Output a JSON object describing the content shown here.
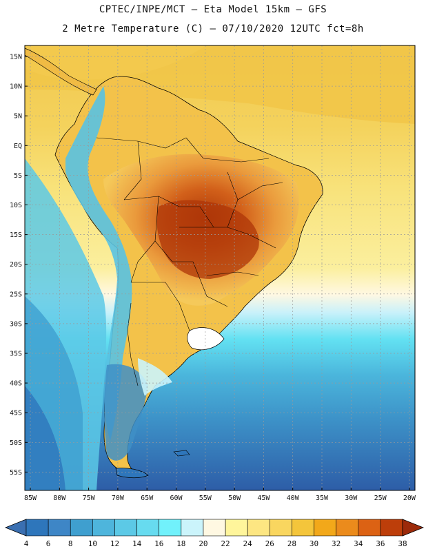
{
  "header": {
    "line1": "CPTEC/INPE/MCT —  Eta Model 15km — GFS",
    "line2": "2 Metre Temperature (C) — 07/10/2020 12UTC fct=8h"
  },
  "axes": {
    "lat_labels": [
      "15N",
      "10N",
      "5N",
      "EQ",
      "5S",
      "10S",
      "15S",
      "20S",
      "25S",
      "30S",
      "35S",
      "40S",
      "45S",
      "50S",
      "55S"
    ],
    "lon_labels": [
      "85W",
      "80W",
      "75W",
      "70W",
      "65W",
      "60W",
      "55W",
      "50W",
      "45W",
      "40W",
      "35W",
      "30W",
      "25W",
      "20W"
    ]
  },
  "colorbar": {
    "labels": [
      "4",
      "6",
      "8",
      "10",
      "12",
      "14",
      "16",
      "18",
      "20",
      "22",
      "24",
      "26",
      "28",
      "30",
      "32",
      "34",
      "36",
      "38"
    ],
    "colors": [
      "#3a6fb1",
      "#2e76bb",
      "#3e86c6",
      "#3f9fcf",
      "#4eb5dc",
      "#5cc9e6",
      "#67dbef",
      "#71f1fb",
      "#cbf4fb",
      "#fff8e2",
      "#fff59b",
      "#fde682",
      "#f9d65f",
      "#f4c53b",
      "#f2a81a",
      "#eb8b1c",
      "#dc6214",
      "#bd3e0a",
      "#9c2a0a"
    ],
    "ticks_start": 4,
    "ticks_step": 2
  },
  "map_style": {
    "land_outline": "#000000",
    "grid_color": "#9a9a9a",
    "ocean_south_pacific": "#2e5fa8",
    "ocean_mid_pacific": "#52b8de",
    "ocean_north": "#f3cf55",
    "ocean_atlantic_subtropic": "#f8e47c"
  }
}
